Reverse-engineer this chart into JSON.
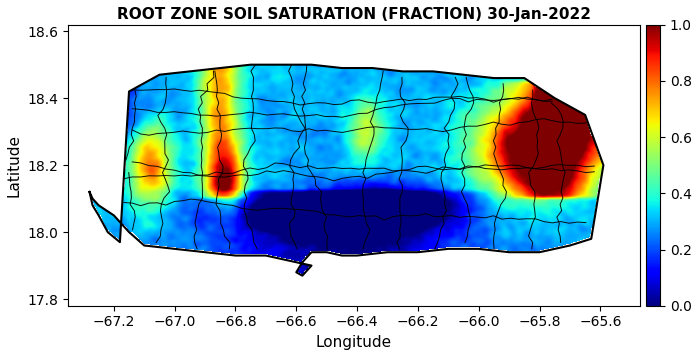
{
  "title": "ROOT ZONE SOIL SATURATION (FRACTION) 30-Jan-2022",
  "xlabel": "Longitude",
  "ylabel": "Latitude",
  "xlim": [
    -67.35,
    -65.47
  ],
  "ylim": [
    17.78,
    18.62
  ],
  "xticks": [
    -67.2,
    -67.0,
    -66.8,
    -66.6,
    -66.4,
    -66.2,
    -66.0,
    -65.8,
    -65.6
  ],
  "yticks": [
    17.8,
    18.0,
    18.2,
    18.4,
    18.6
  ],
  "colorbar_ticks": [
    0,
    0.2,
    0.4,
    0.6,
    0.8,
    1.0
  ],
  "vmin": 0,
  "vmax": 1,
  "background_color": "#ffffff",
  "title_fontsize": 11,
  "label_fontsize": 11,
  "tick_fontsize": 10,
  "seed": 42
}
